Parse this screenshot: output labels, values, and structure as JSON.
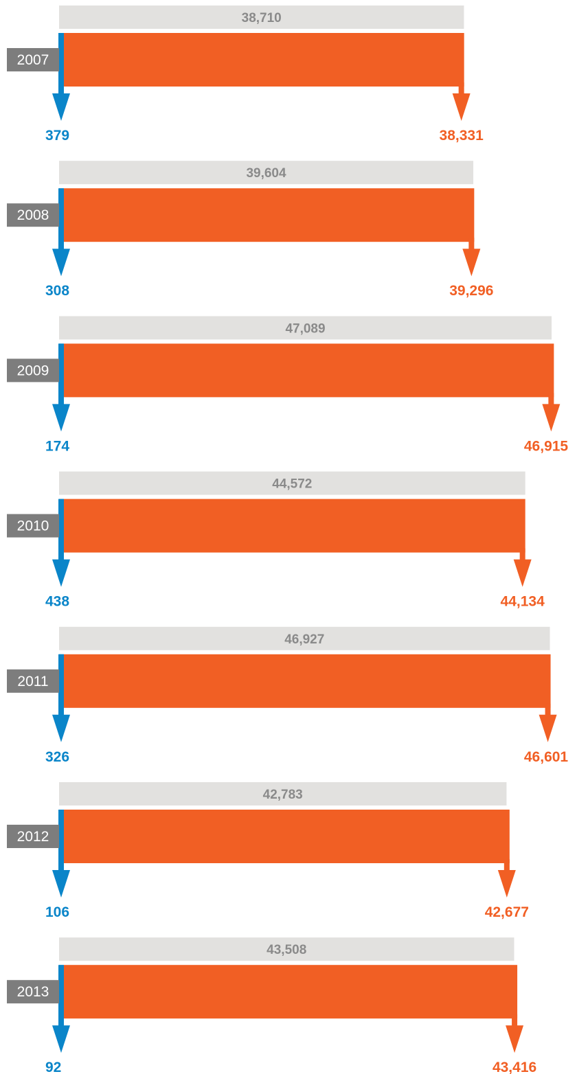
{
  "colors": {
    "total_bar": "#e2e1df",
    "total_text": "#8a8a8a",
    "large_bar": "#f15f24",
    "small_bar": "#0a85c9",
    "year_box": "#7d7d7d",
    "year_text": "#ffffff"
  },
  "chart_data": {
    "type": "bar",
    "categories": [
      "2007",
      "2008",
      "2009",
      "2010",
      "2011",
      "2012",
      "2013"
    ],
    "series": [
      {
        "key": "total",
        "values": [
          38710,
          39604,
          47089,
          44572,
          46927,
          42783,
          43508
        ]
      },
      {
        "key": "small",
        "values": [
          379,
          308,
          174,
          438,
          326,
          106,
          92
        ]
      },
      {
        "key": "large",
        "values": [
          38331,
          39296,
          46915,
          44134,
          46601,
          42677,
          43416
        ]
      }
    ],
    "labels": {
      "total": [
        "38,710",
        "39,604",
        "47,089",
        "44,572",
        "46,927",
        "42,783",
        "43,508"
      ],
      "small": [
        "379",
        "308",
        "174",
        "438",
        "326",
        "106",
        "92"
      ],
      "large": [
        "38,331",
        "39,296",
        "46,915",
        "44,134",
        "46,601",
        "42,677",
        "43,416"
      ]
    },
    "title": "",
    "xlabel": "",
    "ylabel": "",
    "grid": false,
    "legend": "none"
  }
}
